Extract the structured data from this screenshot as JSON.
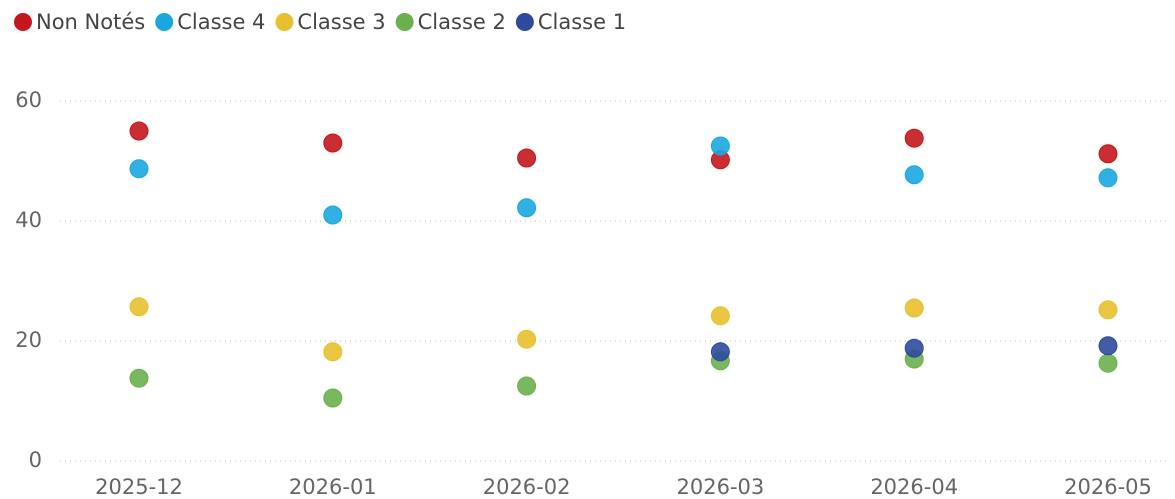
{
  "chart_data": {
    "type": "scatter",
    "categories": [
      "2025-12",
      "2026-01",
      "2026-02",
      "2026-03",
      "2026-04",
      "2026-05"
    ],
    "series": [
      {
        "name": "Non Notés",
        "color": "#c4161c",
        "values": [
          55,
          53,
          50.5,
          50.2,
          53.8,
          51.2
        ]
      },
      {
        "name": "Classe 4",
        "color": "#1aa7e0",
        "values": [
          48.7,
          41,
          42.2,
          52.5,
          47.7,
          47.2
        ]
      },
      {
        "name": "Classe 3",
        "color": "#e8c02f",
        "values": [
          25.7,
          18.2,
          20.3,
          24.2,
          25.5,
          25.2
        ]
      },
      {
        "name": "Classe 2",
        "color": "#6ab04c",
        "values": [
          13.8,
          10.5,
          12.5,
          16.7,
          17,
          16.3
        ]
      },
      {
        "name": "Classe 1",
        "color": "#2e4a9e",
        "values": [
          null,
          null,
          null,
          18.2,
          18.8,
          19.2
        ]
      }
    ],
    "ylim": [
      0,
      60
    ],
    "yticks": [
      0,
      20,
      40,
      60
    ],
    "grid": true,
    "legend": "top"
  }
}
